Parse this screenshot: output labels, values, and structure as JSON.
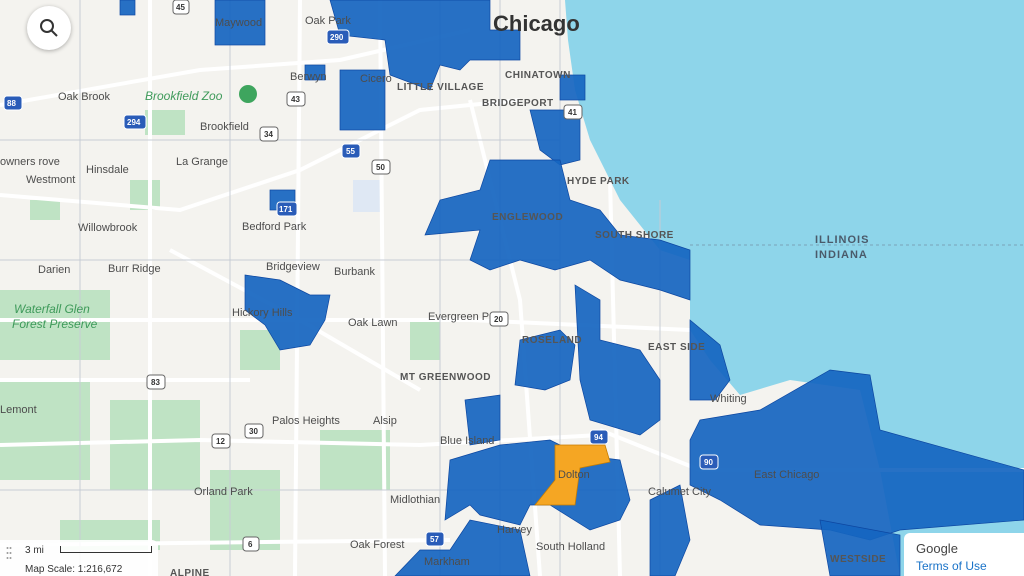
{
  "colors": {
    "water": "#8ed5ea",
    "land": "#f4f3ef",
    "park": "#bfe3c4",
    "highlight": "#1565c0",
    "highlight_alt": "#f5a623"
  },
  "search": {
    "icon": "search-icon"
  },
  "scale": {
    "distance": "3 mi",
    "ratio": "Map Scale: 1:216,672"
  },
  "attribution": {
    "provider": "Google",
    "terms": "Terms of Use"
  },
  "labels": {
    "chicago": "Chicago",
    "maywood": "Maywood",
    "oak_park": "Oak Park",
    "cicero": "Cicero",
    "berwyn": "Berwyn",
    "oak_brook": "Oak Brook",
    "brookfield_zoo": "Brookfield Zoo",
    "brookfield": "Brookfield",
    "la_grange": "La Grange",
    "westmont": "Westmont",
    "hinsdale": "Hinsdale",
    "willowbrook": "Willowbrook",
    "darien": "Darien",
    "burr_ridge": "Burr Ridge",
    "bedford_park": "Bedford Park",
    "bridgeview": "Bridgeview",
    "burbank": "Burbank",
    "hickory_hills": "Hickory Hills",
    "oak_lawn": "Oak Lawn",
    "evergreen_park": "Evergreen Park",
    "palos_heights": "Palos Heights",
    "alsip": "Alsip",
    "blue_island": "Blue Island",
    "orland_park": "Orland Park",
    "midlothian": "Midlothian",
    "harvey": "Harvey",
    "markham": "Markham",
    "oak_forest": "Oak Forest",
    "south_holland": "South Holland",
    "dolton": "Dolton",
    "calumet_city": "Calumet City",
    "whiting": "Whiting",
    "east_chicago": "East Chicago",
    "lemont": "Lemont",
    "downers_grove": "owners rove",
    "waterfall_glen": "Waterfall Glen",
    "forest_preserve": "Forest Preserve",
    "little_village": "LITTLE VILLAGE",
    "chinatown": "CHINATOWN",
    "bridgeport": "BRIDGEPORT",
    "hyde_park": "HYDE PARK",
    "englewood": "ENGLEWOOD",
    "south_shore": "SOUTH SHORE",
    "roseland": "ROSELAND",
    "east_side": "EAST SIDE",
    "mt_greenwood": "MT GREENWOOD",
    "westside": "WESTSIDE",
    "alpine": "ALPINE",
    "illinois": "ILLINOIS",
    "indiana": "INDIANA"
  },
  "shields": [
    "45",
    "290",
    "88",
    "294",
    "34",
    "55",
    "43",
    "50",
    "171",
    "20",
    "83",
    "57",
    "90",
    "94",
    "41",
    "6",
    "12",
    "30"
  ]
}
